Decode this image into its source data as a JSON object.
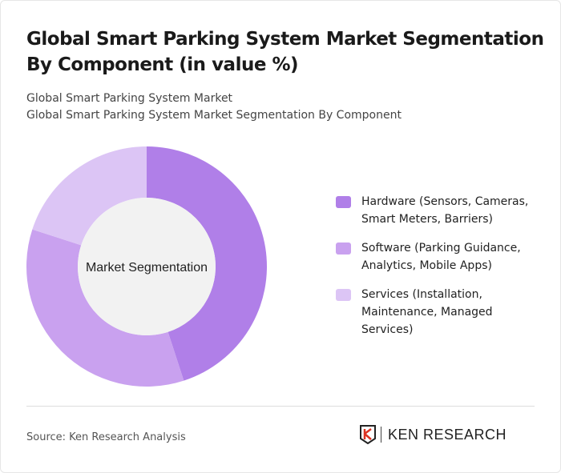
{
  "title": "Global Smart Parking System Market Segmentation By Component (in value %)",
  "subtitle1": "Global Smart Parking System Market",
  "subtitle2": "Global Smart Parking System Market Segmentation By Component",
  "source": "Source: Ken Research Analysis",
  "logo_text": "KEN RESEARCH",
  "chart_data": {
    "type": "pie",
    "variant": "donut",
    "center_label": "Market Segmentation",
    "categories": [
      "Hardware (Sensors, Cameras, Smart Meters, Barriers)",
      "Software (Parking Guidance, Analytics, Mobile Apps)",
      "Services (Installation, Maintenance, Managed Services)"
    ],
    "values": [
      45,
      35,
      20
    ],
    "colors": [
      "#b07fe8",
      "#c9a1ef",
      "#dcc5f5"
    ],
    "legend_position": "right"
  }
}
